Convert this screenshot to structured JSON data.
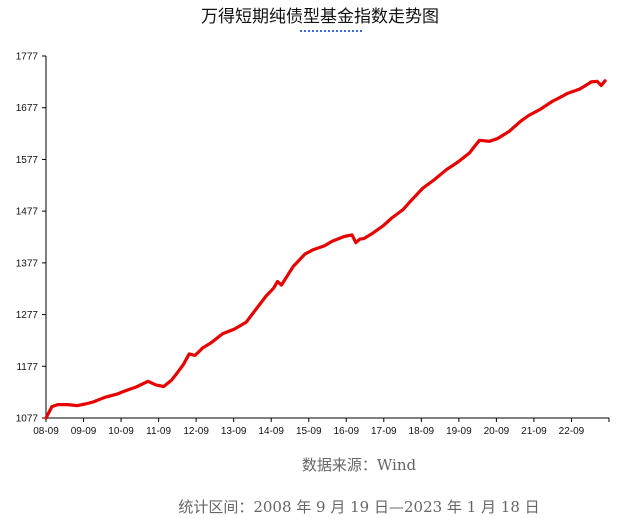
{
  "chart_data": {
    "type": "line",
    "title": "万得短期纯债型基金指数走势图",
    "ylim": [
      1077,
      1777
    ],
    "yticks": [
      "1077",
      "1177",
      "1277",
      "1377",
      "1477",
      "1577",
      "1677",
      "1777"
    ],
    "xticks": [
      "08-09",
      "09-09",
      "10-09",
      "11-09",
      "12-09",
      "13-09",
      "14-09",
      "15-09",
      "16-09",
      "17-09",
      "18-09",
      "19-09",
      "20-09",
      "21-09",
      "22-09"
    ],
    "xlim": [
      2008.7,
      2023.05
    ],
    "grid": false,
    "line_color": "#e60000",
    "series": [
      {
        "x": [
          2008.7,
          2008.85,
          2009.0,
          2009.25,
          2009.5,
          2009.7,
          2009.9,
          2010.2,
          2010.5,
          2010.7,
          2011.0,
          2011.3,
          2011.5,
          2011.7,
          2011.9,
          2012.0,
          2012.2,
          2012.35,
          2012.5,
          2012.7,
          2012.9,
          2013.2,
          2013.5,
          2013.8,
          2014.0,
          2014.3,
          2014.5,
          2014.6,
          2014.7,
          2014.85,
          2015.0,
          2015.3,
          2015.5,
          2015.8,
          2016.0,
          2016.3,
          2016.5,
          2016.6,
          2016.7,
          2016.8,
          2017.0,
          2017.3,
          2017.5,
          2017.8,
          2018.0,
          2018.3,
          2018.6,
          2018.9,
          2019.2,
          2019.5,
          2019.6,
          2019.75,
          2020.0,
          2020.2,
          2020.5,
          2020.8,
          2021.0,
          2021.3,
          2021.6,
          2021.8,
          2022.0,
          2022.3,
          2022.5,
          2022.6,
          2022.75,
          2022.85,
          2022.95
        ],
        "y": [
          1077,
          1099,
          1103,
          1103,
          1101,
          1104,
          1108,
          1117,
          1123,
          1129,
          1137,
          1148,
          1141,
          1138,
          1150,
          1160,
          1180,
          1201,
          1198,
          1213,
          1222,
          1240,
          1249,
          1262,
          1282,
          1312,
          1328,
          1341,
          1334,
          1352,
          1370,
          1394,
          1402,
          1410,
          1419,
          1428,
          1431,
          1416,
          1423,
          1424,
          1433,
          1449,
          1463,
          1480,
          1497,
          1521,
          1538,
          1557,
          1572,
          1590,
          1600,
          1614,
          1612,
          1617,
          1631,
          1651,
          1662,
          1674,
          1689,
          1697,
          1705,
          1713,
          1722,
          1727,
          1728,
          1720,
          1729
        ]
      }
    ]
  },
  "footer": {
    "source": "数据来源：Wind",
    "period": "统计区间：2008 年 9 月 19 日—2023 年 1 月 18 日"
  }
}
